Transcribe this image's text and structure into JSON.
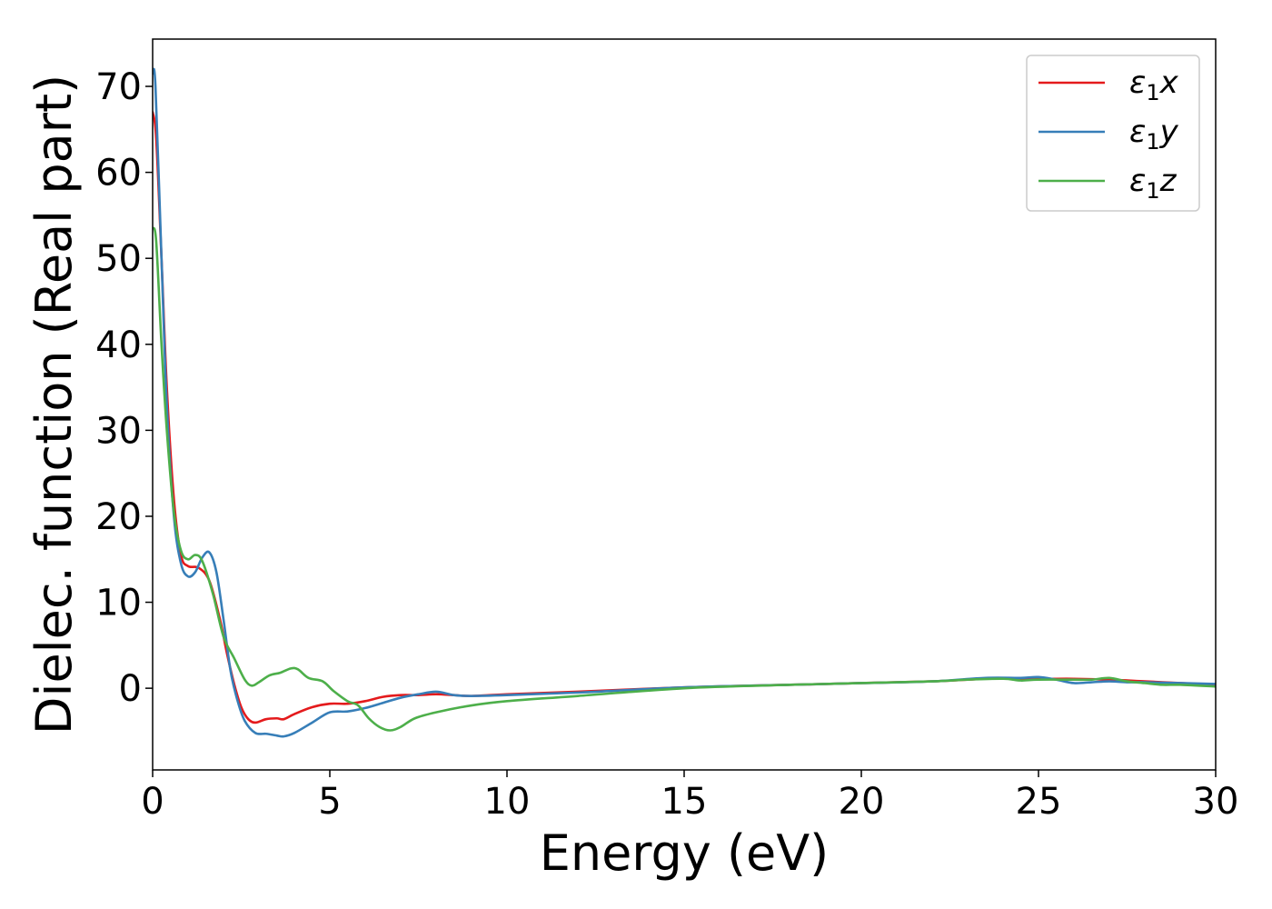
{
  "chart_data": {
    "type": "line",
    "title": "",
    "xlabel": "Energy (eV)",
    "ylabel": "Dielec. function (Real part)",
    "xlim": [
      0,
      30
    ],
    "ylim": [
      -9.5,
      75.5
    ],
    "xticks": [
      0,
      5,
      10,
      15,
      20,
      25,
      30
    ],
    "yticks": [
      0,
      10,
      20,
      30,
      40,
      50,
      60,
      70
    ],
    "grid": false,
    "legend_position": "top-right",
    "series": [
      {
        "name": "ε1x",
        "sym": "ε",
        "sub": "1",
        "comp": "x",
        "color": "#e41a1c",
        "points": [
          [
            0,
            67
          ],
          [
            0.1,
            64
          ],
          [
            0.25,
            50
          ],
          [
            0.4,
            35
          ],
          [
            0.6,
            22
          ],
          [
            0.8,
            15.5
          ],
          [
            1.0,
            14.2
          ],
          [
            1.3,
            14.0
          ],
          [
            1.6,
            12.5
          ],
          [
            1.9,
            8
          ],
          [
            2.1,
            4
          ],
          [
            2.3,
            0.5
          ],
          [
            2.5,
            -2.2
          ],
          [
            2.7,
            -3.6
          ],
          [
            2.9,
            -4
          ],
          [
            3.2,
            -3.6
          ],
          [
            3.5,
            -3.5
          ],
          [
            3.7,
            -3.6
          ],
          [
            4.0,
            -3.0
          ],
          [
            4.5,
            -2.2
          ],
          [
            5.0,
            -1.8
          ],
          [
            5.5,
            -1.8
          ],
          [
            6.0,
            -1.5
          ],
          [
            6.5,
            -1.0
          ],
          [
            7.0,
            -0.8
          ],
          [
            7.5,
            -0.8
          ],
          [
            8.0,
            -0.7
          ],
          [
            8.5,
            -0.8
          ],
          [
            9.0,
            -0.9
          ],
          [
            10,
            -0.7
          ],
          [
            12,
            -0.4
          ],
          [
            15,
            0.1
          ],
          [
            18,
            0.4
          ],
          [
            20,
            0.6
          ],
          [
            22,
            0.8
          ],
          [
            23,
            1.0
          ],
          [
            24,
            1.2
          ],
          [
            25,
            1.1
          ],
          [
            26,
            1.1
          ],
          [
            27,
            1.0
          ],
          [
            28,
            0.8
          ],
          [
            29,
            0.6
          ],
          [
            30,
            0.4
          ]
        ]
      },
      {
        "name": "ε1y",
        "sym": "ε",
        "sub": "1",
        "comp": "y",
        "color": "#377eb8",
        "points": [
          [
            0,
            71.5
          ],
          [
            0.08,
            70
          ],
          [
            0.25,
            50
          ],
          [
            0.4,
            33
          ],
          [
            0.6,
            20
          ],
          [
            0.8,
            14.5
          ],
          [
            1.0,
            13
          ],
          [
            1.2,
            13.5
          ],
          [
            1.4,
            15.2
          ],
          [
            1.6,
            15.8
          ],
          [
            1.8,
            13.5
          ],
          [
            2.0,
            8
          ],
          [
            2.2,
            2
          ],
          [
            2.4,
            -1.5
          ],
          [
            2.6,
            -3.8
          ],
          [
            2.9,
            -5.2
          ],
          [
            3.2,
            -5.3
          ],
          [
            3.5,
            -5.5
          ],
          [
            3.7,
            -5.6
          ],
          [
            4.0,
            -5.2
          ],
          [
            4.5,
            -4.0
          ],
          [
            5.0,
            -2.8
          ],
          [
            5.5,
            -2.7
          ],
          [
            6.0,
            -2.3
          ],
          [
            6.5,
            -1.7
          ],
          [
            7.0,
            -1.1
          ],
          [
            7.5,
            -0.7
          ],
          [
            8.0,
            -0.4
          ],
          [
            8.5,
            -0.8
          ],
          [
            9.0,
            -0.9
          ],
          [
            10,
            -0.8
          ],
          [
            12,
            -0.5
          ],
          [
            15,
            0.1
          ],
          [
            18,
            0.4
          ],
          [
            20,
            0.6
          ],
          [
            22,
            0.8
          ],
          [
            23.5,
            1.2
          ],
          [
            24.5,
            1.2
          ],
          [
            25,
            1.3
          ],
          [
            25.5,
            1.0
          ],
          [
            26,
            0.6
          ],
          [
            26.5,
            0.7
          ],
          [
            27,
            0.8
          ],
          [
            27.5,
            0.7
          ],
          [
            28,
            0.7
          ],
          [
            29,
            0.6
          ],
          [
            30,
            0.5
          ]
        ]
      },
      {
        "name": "ε1z",
        "sym": "ε",
        "sub": "1",
        "comp": "z",
        "color": "#4daf4a",
        "points": [
          [
            0,
            53.5
          ],
          [
            0.1,
            52
          ],
          [
            0.25,
            40
          ],
          [
            0.4,
            30
          ],
          [
            0.6,
            20.5
          ],
          [
            0.8,
            16
          ],
          [
            1.0,
            15
          ],
          [
            1.2,
            15.5
          ],
          [
            1.4,
            14.8
          ],
          [
            1.7,
            11
          ],
          [
            2.0,
            6
          ],
          [
            2.3,
            3.5
          ],
          [
            2.6,
            1
          ],
          [
            2.8,
            0.3
          ],
          [
            3.0,
            0.7
          ],
          [
            3.3,
            1.5
          ],
          [
            3.6,
            1.8
          ],
          [
            3.9,
            2.3
          ],
          [
            4.1,
            2.2
          ],
          [
            4.4,
            1.2
          ],
          [
            4.8,
            0.8
          ],
          [
            5.1,
            -0.3
          ],
          [
            5.5,
            -1.5
          ],
          [
            5.8,
            -2.0
          ],
          [
            6.1,
            -3.5
          ],
          [
            6.4,
            -4.5
          ],
          [
            6.7,
            -4.9
          ],
          [
            7.0,
            -4.5
          ],
          [
            7.4,
            -3.5
          ],
          [
            8.0,
            -2.8
          ],
          [
            9.0,
            -2.0
          ],
          [
            10,
            -1.5
          ],
          [
            12,
            -0.9
          ],
          [
            15,
            0
          ],
          [
            18,
            0.4
          ],
          [
            20,
            0.6
          ],
          [
            22,
            0.8
          ],
          [
            23,
            1.0
          ],
          [
            24,
            1.1
          ],
          [
            24.5,
            0.9
          ],
          [
            25,
            1.0
          ],
          [
            26,
            1.0
          ],
          [
            26.5,
            1.0
          ],
          [
            27,
            1.2
          ],
          [
            27.5,
            0.8
          ],
          [
            28,
            0.6
          ],
          [
            28.5,
            0.4
          ],
          [
            29,
            0.4
          ],
          [
            30,
            0.2
          ]
        ]
      }
    ]
  }
}
